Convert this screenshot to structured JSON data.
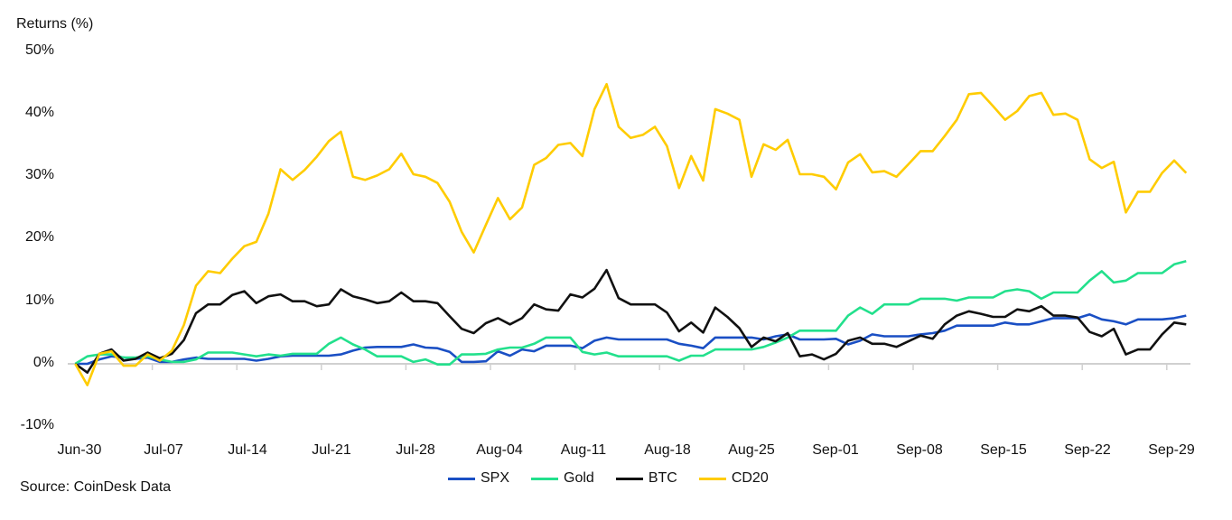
{
  "chart_data": {
    "type": "line",
    "ylabel": "Returns (%)",
    "ylim": [
      -10,
      50
    ],
    "yticks": [
      "50%",
      "40%",
      "30%",
      "20%",
      "10%",
      "0%",
      "-10%"
    ],
    "ytick_values": [
      50,
      40,
      30,
      20,
      10,
      0,
      -10
    ],
    "xtick_labels": [
      "Jun-30",
      "Jul-07",
      "Jul-14",
      "Jul-21",
      "Jul-28",
      "Aug-04",
      "Aug-11",
      "Aug-18",
      "Aug-25",
      "Sep-01",
      "Sep-08",
      "Sep-15",
      "Sep-22",
      "Sep-29"
    ],
    "grid": false,
    "legend_position": "bottom",
    "source": "Source: CoinDesk Data",
    "series": [
      {
        "name": "SPX",
        "color": "#1a4fc4",
        "values": [
          0,
          0,
          0.7,
          1.2,
          1,
          0.8,
          1,
          0.3,
          0.3,
          0.7,
          1,
          0.8,
          0.8,
          0.8,
          0.8,
          0.5,
          0.8,
          1.2,
          1.3,
          1.3,
          1.3,
          1.3,
          1.5,
          2.1,
          2.6,
          2.7,
          2.7,
          2.7,
          3.1,
          2.6,
          2.5,
          1.9,
          0.3,
          0.3,
          0.4,
          2,
          1.3,
          2.3,
          2,
          2.9,
          2.9,
          2.9,
          2.5,
          3.7,
          4.2,
          3.9,
          3.9,
          3.9,
          3.9,
          3.9,
          3.2,
          2.9,
          2.5,
          4.2,
          4.2,
          4.2,
          4.2,
          3.9,
          4.4,
          4.7,
          3.9,
          3.9,
          3.9,
          4,
          3.1,
          3.7,
          4.7,
          4.4,
          4.4,
          4.4,
          4.7,
          4.9,
          5.3,
          6.1,
          6.1,
          6.1,
          6.1,
          6.6,
          6.3,
          6.3,
          6.8,
          7.3,
          7.3,
          7.3,
          7.9,
          7.1,
          6.8,
          6.3,
          7.1,
          7.1,
          7.1,
          7.3,
          7.7
        ]
      },
      {
        "name": "Gold",
        "color": "#22e08c",
        "values": [
          0,
          1.2,
          1.5,
          1.5,
          1,
          1,
          1.2,
          0.7,
          0.3,
          0.3,
          0.7,
          1.8,
          1.8,
          1.8,
          1.5,
          1.2,
          1.5,
          1.3,
          1.6,
          1.6,
          1.6,
          3.2,
          4.2,
          3.1,
          2.3,
          1.2,
          1.2,
          1.2,
          0.3,
          0.7,
          -0.1,
          -0.1,
          1.5,
          1.5,
          1.6,
          2.3,
          2.6,
          2.6,
          3.2,
          4.2,
          4.2,
          4.2,
          1.9,
          1.5,
          1.8,
          1.2,
          1.2,
          1.2,
          1.2,
          1.2,
          0.5,
          1.3,
          1.3,
          2.3,
          2.3,
          2.3,
          2.3,
          2.7,
          3.4,
          4.2,
          5.3,
          5.3,
          5.3,
          5.3,
          7.7,
          9,
          8,
          9.5,
          9.5,
          9.5,
          10.4,
          10.4,
          10.4,
          10.1,
          10.6,
          10.6,
          10.6,
          11.6,
          11.9,
          11.6,
          10.4,
          11.4,
          11.4,
          11.4,
          13.3,
          14.8,
          13,
          13.3,
          14.5,
          14.5,
          14.5,
          15.9,
          16.4
        ]
      },
      {
        "name": "BTC",
        "color": "#111111",
        "values": [
          0,
          -1.4,
          1.6,
          2.3,
          0.5,
          0.8,
          1.8,
          0.9,
          1.6,
          3.8,
          8.1,
          9.5,
          9.5,
          11,
          11.6,
          9.7,
          10.8,
          11.1,
          10,
          10,
          9.2,
          9.5,
          11.9,
          10.8,
          10.3,
          9.7,
          10,
          11.4,
          10,
          10,
          9.7,
          7.6,
          5.6,
          4.9,
          6.5,
          7.3,
          6.3,
          7.3,
          9.5,
          8.7,
          8.5,
          11.1,
          10.6,
          12,
          15,
          10.5,
          9.5,
          9.5,
          9.5,
          8.2,
          5.2,
          6.6,
          5,
          9,
          7.5,
          5.7,
          2.7,
          4.2,
          3.6,
          4.9,
          1.2,
          1.5,
          0.7,
          1.6,
          3.7,
          4.2,
          3.2,
          3.2,
          2.7,
          3.6,
          4.5,
          4,
          6.3,
          7.7,
          8.4,
          8,
          7.5,
          7.5,
          8.7,
          8.4,
          9.2,
          7.7,
          7.7,
          7.4,
          5.1,
          4.4,
          5.6,
          1.5,
          2.3,
          2.3,
          4.7,
          6.6,
          6.3
        ]
      },
      {
        "name": "CD20",
        "color": "#ffcc00",
        "values": [
          0,
          -3.4,
          1.6,
          2.0,
          -0.3,
          -0.3,
          1.5,
          0.5,
          2.1,
          6.2,
          12.5,
          14.8,
          14.5,
          16.8,
          18.8,
          19.5,
          24,
          31.1,
          29.4,
          31,
          33.1,
          35.6,
          37.1,
          29.9,
          29.4,
          30.1,
          31.1,
          33.6,
          30.3,
          29.9,
          28.9,
          25.9,
          21.1,
          17.8,
          22.2,
          26.5,
          23.1,
          25,
          31.8,
          32.9,
          35,
          35.3,
          33.2,
          40.7,
          44.7,
          37.9,
          36.1,
          36.6,
          37.9,
          34.8,
          28.1,
          33.2,
          29.3,
          40.7,
          40,
          39,
          29.9,
          35.1,
          34.2,
          35.8,
          30.3,
          30.3,
          29.9,
          27.9,
          32.2,
          33.5,
          30.6,
          30.8,
          29.9,
          31.9,
          34,
          34,
          36.4,
          39,
          43.1,
          43.3,
          41.2,
          39,
          40.4,
          42.8,
          43.3,
          39.8,
          40,
          39,
          32.7,
          31.3,
          32.3,
          24.2,
          27.5,
          27.5,
          30.5,
          32.5,
          30.5
        ]
      }
    ]
  }
}
